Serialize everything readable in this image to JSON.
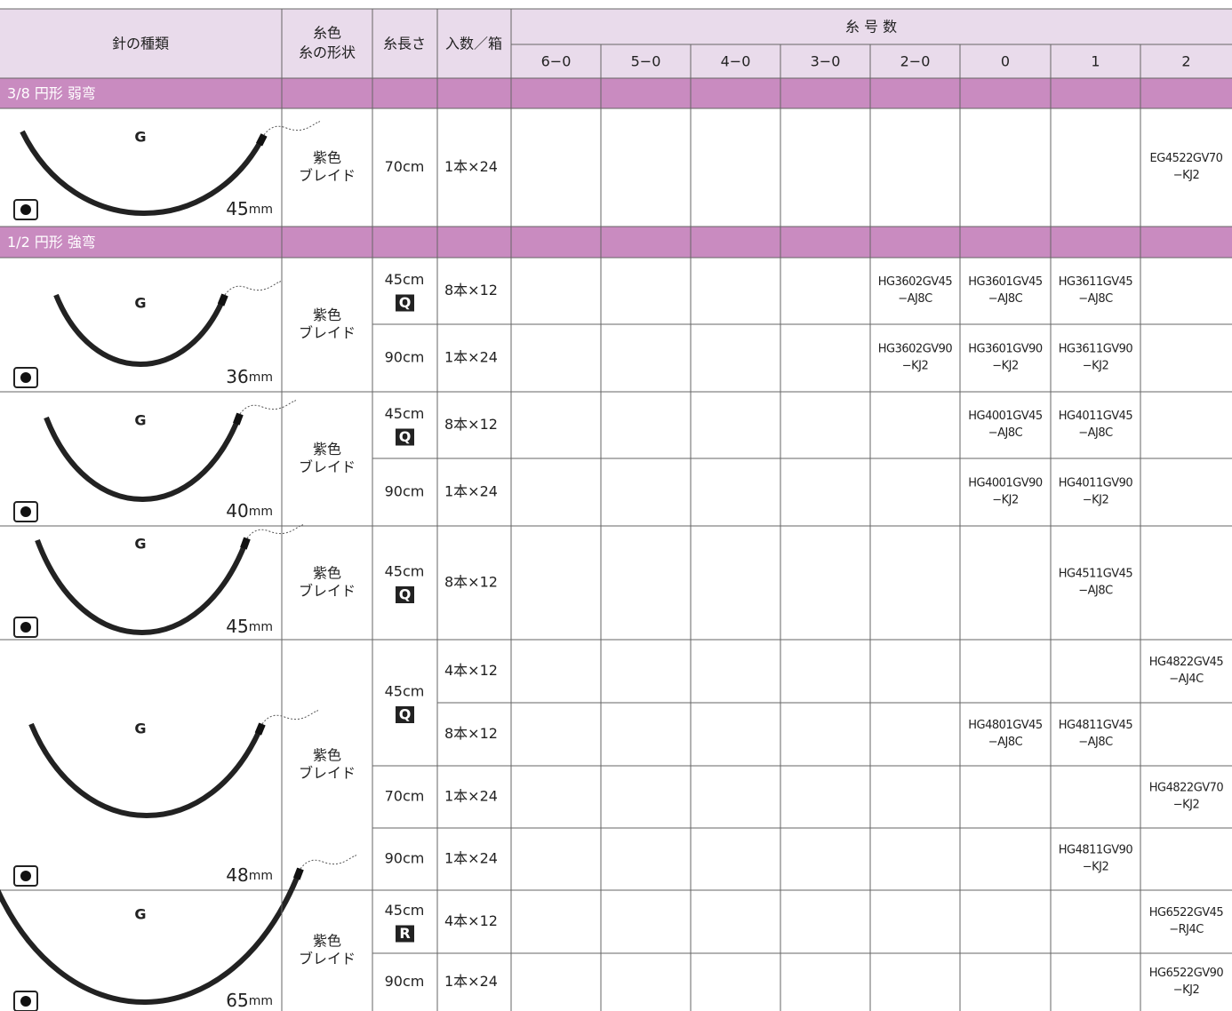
{
  "header": {
    "needle_type": "針の種類",
    "thread": [
      "糸色",
      "糸の形状"
    ],
    "length": "糸長さ",
    "count": "入数／箱",
    "sizes_title": "糸 号 数",
    "sizes": [
      "6−0",
      "5−0",
      "4−0",
      "3−0",
      "2−0",
      "0",
      "1",
      "2"
    ]
  },
  "sections": [
    {
      "title": "3/8 円形 弱弯",
      "groups": [
        {
          "needle": {
            "letter": "G",
            "size": "45",
            "unit": "mm"
          },
          "thread": [
            "紫色",
            "ブレイド"
          ],
          "lengths": [
            {
              "length": "70cm",
              "rows": [
                {
                  "count": "1本×24",
                  "codes": [
                    null,
                    null,
                    null,
                    null,
                    null,
                    null,
                    null,
                    [
                      "EG4522GV70",
                      "−KJ2"
                    ]
                  ]
                }
              ]
            }
          ]
        }
      ]
    },
    {
      "title": "1/2 円形 強弯",
      "groups": [
        {
          "needle": {
            "letter": "G",
            "size": "36",
            "unit": "mm"
          },
          "thread": [
            "紫色",
            "ブレイド"
          ],
          "lengths": [
            {
              "length": "45cm",
              "badge": "Q",
              "rows": [
                {
                  "count": "8本×12",
                  "codes": [
                    null,
                    null,
                    null,
                    null,
                    [
                      "HG3602GV45",
                      "−AJ8C"
                    ],
                    [
                      "HG3601GV45",
                      "−AJ8C"
                    ],
                    [
                      "HG3611GV45",
                      "−AJ8C"
                    ],
                    null
                  ]
                }
              ]
            },
            {
              "length": "90cm",
              "rows": [
                {
                  "count": "1本×24",
                  "codes": [
                    null,
                    null,
                    null,
                    null,
                    [
                      "HG3602GV90",
                      "−KJ2"
                    ],
                    [
                      "HG3601GV90",
                      "−KJ2"
                    ],
                    [
                      "HG3611GV90",
                      "−KJ2"
                    ],
                    null
                  ]
                }
              ]
            }
          ]
        },
        {
          "needle": {
            "letter": "G",
            "size": "40",
            "unit": "mm"
          },
          "thread": [
            "紫色",
            "ブレイド"
          ],
          "lengths": [
            {
              "length": "45cm",
              "badge": "Q",
              "rows": [
                {
                  "count": "8本×12",
                  "codes": [
                    null,
                    null,
                    null,
                    null,
                    null,
                    [
                      "HG4001GV45",
                      "−AJ8C"
                    ],
                    [
                      "HG4011GV45",
                      "−AJ8C"
                    ],
                    null
                  ]
                }
              ]
            },
            {
              "length": "90cm",
              "rows": [
                {
                  "count": "1本×24",
                  "codes": [
                    null,
                    null,
                    null,
                    null,
                    null,
                    [
                      "HG4001GV90",
                      "−KJ2"
                    ],
                    [
                      "HG4011GV90",
                      "−KJ2"
                    ],
                    null
                  ]
                }
              ]
            }
          ]
        },
        {
          "needle": {
            "letter": "G",
            "size": "45",
            "unit": "mm"
          },
          "thread": [
            "紫色",
            "ブレイド"
          ],
          "lengths": [
            {
              "length": "45cm",
              "badge": "Q",
              "rows": [
                {
                  "count": "8本×12",
                  "codes": [
                    null,
                    null,
                    null,
                    null,
                    null,
                    null,
                    [
                      "HG4511GV45",
                      "−AJ8C"
                    ],
                    null
                  ]
                }
              ]
            }
          ]
        },
        {
          "needle": {
            "letter": "G",
            "size": "48",
            "unit": "mm"
          },
          "thread": [
            "紫色",
            "ブレイド"
          ],
          "lengths": [
            {
              "length": "45cm",
              "badge": "Q",
              "rows": [
                {
                  "count": "4本×12",
                  "codes": [
                    null,
                    null,
                    null,
                    null,
                    null,
                    null,
                    null,
                    [
                      "HG4822GV45",
                      "−AJ4C"
                    ]
                  ]
                },
                {
                  "count": "8本×12",
                  "codes": [
                    null,
                    null,
                    null,
                    null,
                    null,
                    [
                      "HG4801GV45",
                      "−AJ8C"
                    ],
                    [
                      "HG4811GV45",
                      "−AJ8C"
                    ],
                    null
                  ]
                }
              ]
            },
            {
              "length": "70cm",
              "rows": [
                {
                  "count": "1本×24",
                  "codes": [
                    null,
                    null,
                    null,
                    null,
                    null,
                    null,
                    null,
                    [
                      "HG4822GV70",
                      "−KJ2"
                    ]
                  ]
                }
              ]
            },
            {
              "length": "90cm",
              "rows": [
                {
                  "count": "1本×24",
                  "codes": [
                    null,
                    null,
                    null,
                    null,
                    null,
                    null,
                    [
                      "HG4811GV90",
                      "−KJ2"
                    ],
                    null
                  ]
                }
              ]
            }
          ]
        },
        {
          "needle": {
            "letter": "G",
            "size": "65",
            "unit": "mm"
          },
          "thread": [
            "紫色",
            "ブレイド"
          ],
          "lengths": [
            {
              "length": "45cm",
              "badge": "R",
              "rows": [
                {
                  "count": "4本×12",
                  "codes": [
                    null,
                    null,
                    null,
                    null,
                    null,
                    null,
                    null,
                    [
                      "HG6522GV45",
                      "−RJ4C"
                    ]
                  ]
                }
              ]
            },
            {
              "length": "90cm",
              "rows": [
                {
                  "count": "1本×24",
                  "codes": [
                    null,
                    null,
                    null,
                    null,
                    null,
                    null,
                    null,
                    [
                      "HG6522GV90",
                      "−KJ2"
                    ]
                  ]
                }
              ]
            }
          ]
        }
      ]
    }
  ]
}
